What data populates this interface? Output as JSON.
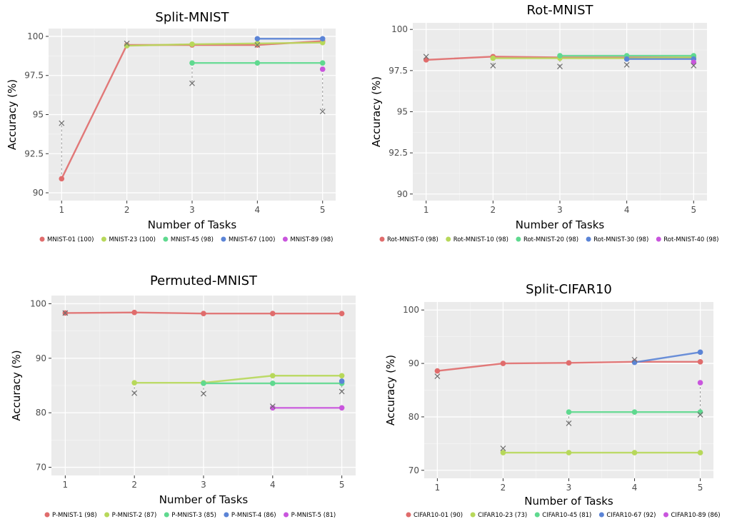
{
  "chart_data": [
    {
      "type": "line",
      "title": "Split-MNIST",
      "xlabel": "Number of Tasks",
      "ylabel": "Accuracy (%)",
      "x": [
        1,
        2,
        3,
        4,
        5
      ],
      "xlim": [
        0.8,
        5.2
      ],
      "ylim": [
        89.5,
        100.5
      ],
      "yticks": [
        90,
        92.5,
        95,
        97.5,
        100
      ],
      "yticklabels": [
        "90",
        "92.5",
        "95",
        "97.5",
        "100"
      ],
      "grid": true,
      "legend": "bottom",
      "series": [
        {
          "name": "MNIST-01 (100)",
          "color": "#e06c6c",
          "values": [
            90.9,
            99.45,
            99.45,
            99.45,
            99.7
          ]
        },
        {
          "name": "MNIST-23 (100)",
          "color": "#b7d85a",
          "values": [
            null,
            99.4,
            99.5,
            99.55,
            99.6
          ]
        },
        {
          "name": "MNIST-45 (98)",
          "color": "#5fd98f",
          "values": [
            null,
            null,
            98.3,
            98.3,
            98.3
          ]
        },
        {
          "name": "MNIST-67 (100)",
          "color": "#5b84d6",
          "values": [
            null,
            null,
            null,
            99.85,
            99.85
          ]
        },
        {
          "name": "MNIST-89 (98)",
          "color": "#c955dd",
          "values": [
            null,
            null,
            null,
            null,
            97.9
          ]
        }
      ],
      "markers_x": [
        {
          "x": 1,
          "y": 94.45
        },
        {
          "x": 2,
          "y": 99.55
        },
        {
          "x": 3,
          "y": 97.0
        },
        {
          "x": 4,
          "y": 99.45
        },
        {
          "x": 5,
          "y": 95.2
        }
      ]
    },
    {
      "type": "line",
      "title": "Rot-MNIST",
      "xlabel": "Number of Tasks",
      "ylabel": "Accuracy (%)",
      "x": [
        1,
        2,
        3,
        4,
        5
      ],
      "xlim": [
        0.8,
        5.2
      ],
      "ylim": [
        89.6,
        100.4
      ],
      "yticks": [
        90,
        92.5,
        95,
        97.5,
        100
      ],
      "yticklabels": [
        "90",
        "92.5",
        "95",
        "97.5",
        "100"
      ],
      "grid": true,
      "legend": "bottom",
      "series": [
        {
          "name": "Rot-MNIST-0 (98)",
          "color": "#e06c6c",
          "values": [
            98.15,
            98.35,
            98.3,
            98.3,
            98.3
          ]
        },
        {
          "name": "Rot-MNIST-10 (98)",
          "color": "#b7d85a",
          "values": [
            null,
            98.25,
            98.25,
            98.25,
            98.3
          ]
        },
        {
          "name": "Rot-MNIST-20 (98)",
          "color": "#5fd98f",
          "values": [
            null,
            null,
            98.4,
            98.4,
            98.4
          ]
        },
        {
          "name": "Rot-MNIST-30 (98)",
          "color": "#5b84d6",
          "values": [
            null,
            null,
            null,
            98.2,
            98.2
          ]
        },
        {
          "name": "Rot-MNIST-40 (98)",
          "color": "#c955dd",
          "values": [
            null,
            null,
            null,
            null,
            98.0
          ]
        }
      ],
      "markers_x": [
        {
          "x": 1,
          "y": 98.35
        },
        {
          "x": 2,
          "y": 97.8
        },
        {
          "x": 3,
          "y": 97.75
        },
        {
          "x": 4,
          "y": 97.85
        },
        {
          "x": 5,
          "y": 97.8
        }
      ]
    },
    {
      "type": "line",
      "title": "Permuted-MNIST",
      "xlabel": "Number of Tasks",
      "ylabel": "Accuracy (%)",
      "x": [
        1,
        2,
        3,
        4,
        5
      ],
      "xlim": [
        0.8,
        5.2
      ],
      "ylim": [
        68.5,
        101.5
      ],
      "yticks": [
        70,
        80,
        90,
        100
      ],
      "yticklabels": [
        "70",
        "80",
        "90",
        "100"
      ],
      "grid": true,
      "legend": "bottom",
      "series": [
        {
          "name": "P-MNIST-1 (98)",
          "color": "#e06c6c",
          "values": [
            98.3,
            98.4,
            98.2,
            98.2,
            98.2
          ]
        },
        {
          "name": "P-MNIST-2 (87)",
          "color": "#b7d85a",
          "values": [
            null,
            85.5,
            85.5,
            86.8,
            86.8
          ]
        },
        {
          "name": "P-MNIST-3 (85)",
          "color": "#5fd98f",
          "values": [
            null,
            null,
            85.4,
            85.4,
            85.4
          ]
        },
        {
          "name": "P-MNIST-4 (86)",
          "color": "#5b84d6",
          "values": [
            null,
            null,
            null,
            null,
            85.8
          ]
        },
        {
          "name": "P-MNIST-5 (81)",
          "color": "#c955dd",
          "values": [
            null,
            null,
            null,
            80.9,
            80.9
          ]
        }
      ],
      "markers_x": [
        {
          "x": 1,
          "y": 98.3
        },
        {
          "x": 2,
          "y": 83.6
        },
        {
          "x": 3,
          "y": 83.5
        },
        {
          "x": 4,
          "y": 81.2
        },
        {
          "x": 5,
          "y": 83.9
        }
      ]
    },
    {
      "type": "line",
      "title": "Split-CIFAR10",
      "xlabel": "Number of Tasks",
      "ylabel": "Accuracy (%)",
      "x": [
        1,
        2,
        3,
        4,
        5
      ],
      "xlim": [
        0.8,
        5.2
      ],
      "ylim": [
        68.5,
        101.5
      ],
      "yticks": [
        70,
        80,
        90,
        100
      ],
      "yticklabels": [
        "70",
        "80",
        "90",
        "100"
      ],
      "grid": true,
      "legend": "bottom",
      "series": [
        {
          "name": "CIFAR10-01 (90)",
          "color": "#e06c6c",
          "values": [
            88.6,
            90.0,
            90.1,
            90.3,
            90.3
          ]
        },
        {
          "name": "CIFAR10-23 (73)",
          "color": "#b7d85a",
          "values": [
            null,
            73.3,
            73.3,
            73.3,
            73.3
          ]
        },
        {
          "name": "CIFAR10-45 (81)",
          "color": "#5fd98f",
          "values": [
            null,
            null,
            80.9,
            80.9,
            80.9
          ]
        },
        {
          "name": "CIFAR10-67 (92)",
          "color": "#5b84d6",
          "values": [
            null,
            null,
            null,
            90.2,
            92.1
          ]
        },
        {
          "name": "CIFAR10-89 (86)",
          "color": "#c955dd",
          "values": [
            null,
            null,
            null,
            null,
            86.4
          ]
        }
      ],
      "markers_x": [
        {
          "x": 1,
          "y": 87.6
        },
        {
          "x": 2,
          "y": 74.1
        },
        {
          "x": 3,
          "y": 78.8
        },
        {
          "x": 4,
          "y": 90.7
        },
        {
          "x": 5,
          "y": 80.4
        }
      ]
    }
  ]
}
